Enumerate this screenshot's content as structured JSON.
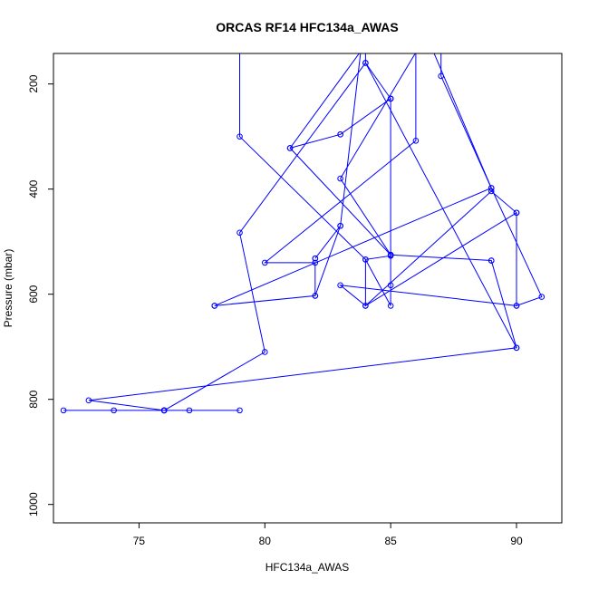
{
  "chart_data": {
    "type": "line",
    "title": "ORCAS RF14 HFC134a_AWAS",
    "xlabel": "HFC134a_AWAS",
    "ylabel": "Pressure (mbar)",
    "xlim": [
      71.6,
      91.8
    ],
    "ylim": [
      1035,
      142
    ],
    "y_axis_reversed": true,
    "x_ticks": [
      75,
      80,
      85,
      90
    ],
    "y_ticks": [
      200,
      400,
      600,
      800,
      1000
    ],
    "grid": false,
    "legend": "none",
    "series_color": "#0000ff",
    "marker": "open-circle",
    "series": [
      {
        "x": [
          72.0,
          76.0,
          76.0,
          74.0,
          79.0,
          76.0,
          76.0,
          77.0,
          76.0,
          80.0,
          79.0,
          84.0,
          90.0,
          73.0,
          76.0
        ],
        "y": [
          821,
          821,
          821,
          821,
          821,
          821,
          821,
          821,
          821,
          710,
          483,
          160,
          702,
          802,
          821
        ]
      },
      {
        "x": [
          79.0,
          79.0,
          84.0,
          85.0,
          85.0,
          85.0,
          84.0,
          84.0,
          89.0,
          90.0,
          90.0,
          83.0,
          84.0,
          90.0
        ],
        "y": [
          60,
          300,
          534,
          527,
          583,
          622,
          534,
          622,
          404,
          445,
          622,
          583,
          622,
          445
        ]
      },
      {
        "x": [
          78.0,
          89.0,
          86.0,
          86.0,
          80.0,
          82.0,
          82.0,
          78.0
        ],
        "y": [
          622,
          398,
          60,
          308,
          540,
          540,
          603,
          622
        ]
      },
      {
        "x": [
          82.0,
          83.0,
          82.0,
          82.0,
          83.0,
          84.0,
          84.0,
          85.0,
          85.0,
          83.0,
          81.0,
          83.0,
          85.0,
          85.0,
          83.0,
          87.0,
          87.0,
          89.0,
          91.0,
          90.0
        ],
        "y": [
          603,
          470,
          532,
          532,
          470,
          60,
          160,
          228,
          228,
          296,
          322,
          296,
          228,
          525,
          380,
          60,
          185,
          398,
          605,
          622
        ]
      },
      {
        "x": [
          85.0,
          81.0,
          85.0,
          89.0,
          90.0,
          89.0
        ],
        "y": [
          60,
          322,
          525,
          536,
          702,
          536
        ]
      }
    ]
  }
}
